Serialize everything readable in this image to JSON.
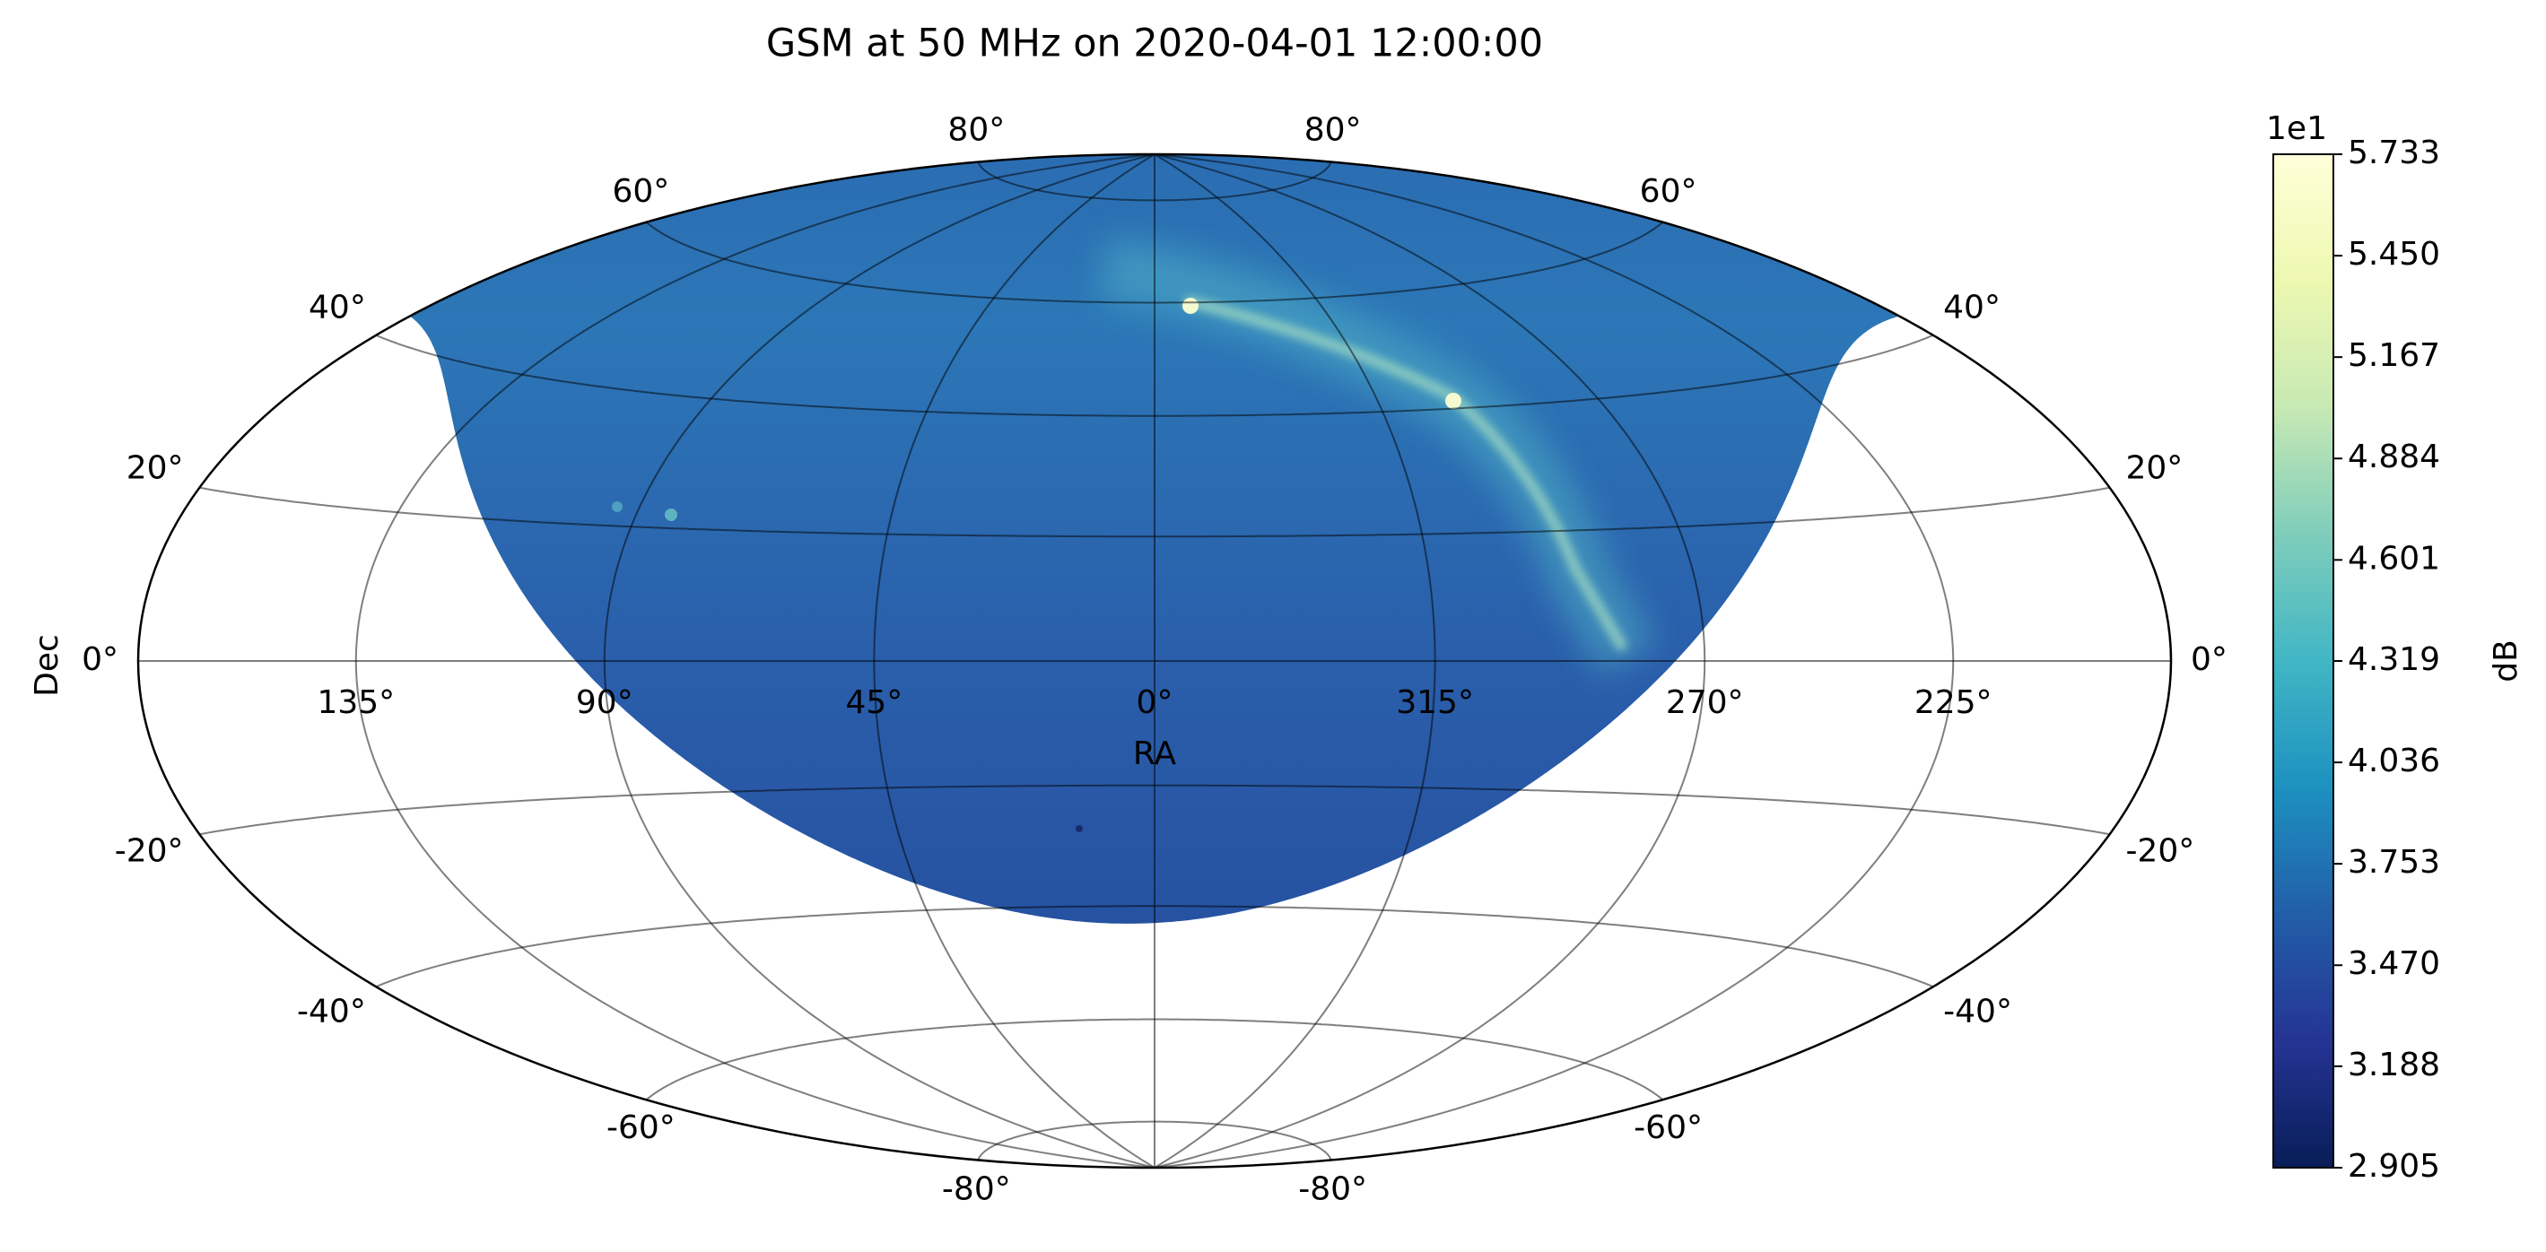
{
  "chart_data": {
    "type": "skymap",
    "projection": "hammer",
    "title": "GSM at 50 MHz on 2020-04-01 12:00:00",
    "xlabel": "RA",
    "ylabel": "Dec",
    "xticks": [
      {
        "value": 135,
        "label": "135°"
      },
      {
        "value": 90,
        "label": "90°"
      },
      {
        "value": 45,
        "label": "45°"
      },
      {
        "value": 0,
        "label": "0°"
      },
      {
        "value": 315,
        "label": "315°"
      },
      {
        "value": 270,
        "label": "270°"
      },
      {
        "value": 225,
        "label": "225°"
      }
    ],
    "yticks": [
      {
        "value": -80,
        "label": "-80°"
      },
      {
        "value": -60,
        "label": "-60°"
      },
      {
        "value": -40,
        "label": "-40°"
      },
      {
        "value": -20,
        "label": "-20°"
      },
      {
        "value": 0,
        "label": "0°"
      },
      {
        "value": 20,
        "label": "20°"
      },
      {
        "value": 40,
        "label": "40°"
      },
      {
        "value": 60,
        "label": "60°"
      },
      {
        "value": 80,
        "label": "80°"
      }
    ],
    "grid": true,
    "colorbar": {
      "label": "dB",
      "offset_label": "1e1",
      "cmap": "YlGnBu",
      "lim": [
        2.905,
        5.733
      ],
      "ticks": [
        2.905,
        3.188,
        {
          "value": 3.47,
          "label": "3.470"
        },
        3.753,
        4.036,
        4.319,
        4.601,
        4.884,
        5.167,
        {
          "value": 5.45,
          "label": "5.450"
        },
        5.733
      ]
    }
  }
}
